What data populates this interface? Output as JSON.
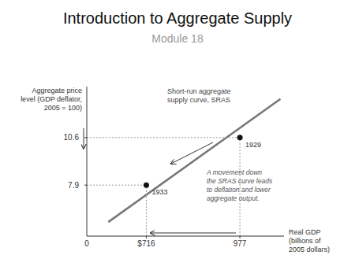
{
  "chart_data": {
    "type": "line",
    "title": "Introduction to Aggregate Supply",
    "subtitle": "Module 18",
    "x_label": "Real GDP\n(billions of\n2005 dollars)",
    "y_label": "Aggregate price\nlevel (GDP deflator,\n2005 = 100)",
    "annotations": [
      "0",
      "Short-run aggregate\nsupply curve, SRAS",
      "A movement down\nthe SRAS curve leads\nto deflation and lower\naggregate output."
    ],
    "xlim": [
      550,
      1100
    ],
    "ylim": [
      5.0,
      13.5
    ],
    "xticks": [
      {
        "value": 716,
        "label": "$716"
      },
      977
    ],
    "yticks": [
      7.9,
      10.6
    ],
    "grid": false,
    "series": [
      {
        "type": "line",
        "color": "#777777",
        "x": [
          610,
          1090
        ],
        "values": [
          5.8,
          12.8
        ]
      },
      {
        "type": "scatter",
        "color": "#111111",
        "x": [
          977,
          716
        ],
        "values": [
          10.6,
          7.9
        ],
        "labels": [
          "1929",
          "1933"
        ]
      }
    ]
  }
}
